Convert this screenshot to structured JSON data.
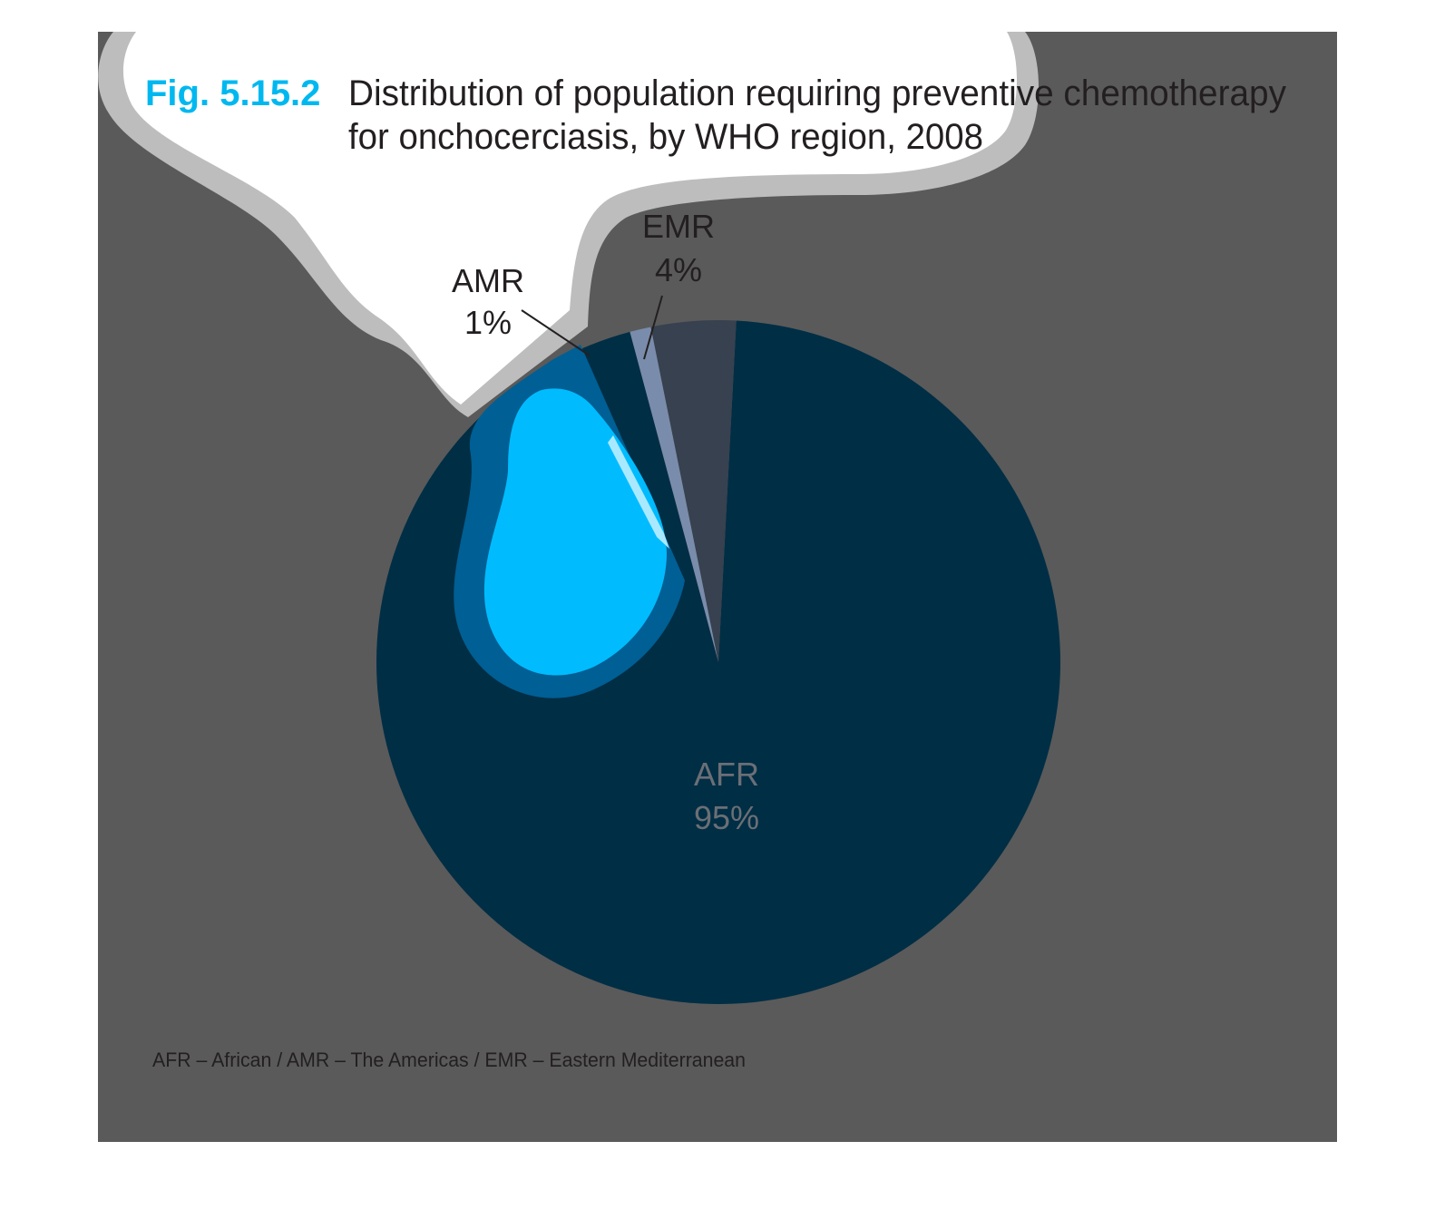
{
  "figure": {
    "number": "Fig. 5.15.2",
    "title_line1": "Distribution of population requiring preventive chemotherapy",
    "title_line2": "for onchocerciasis, by WHO region, 2008",
    "footnote": "AFR – African / AMR – The Americas / EMR – Eastern Mediterranean"
  },
  "colors": {
    "panel_background": "#5a5a5a",
    "bubble_fill": "#ffffff",
    "bubble_outline": "#bdbdbd",
    "figure_number": "#00b8f0",
    "afr_slice": "#002e45",
    "emr_slice": "#37414f",
    "amr_slice": "#7a8cab",
    "drop_outer": "#005f94",
    "drop_inner": "#00bcff",
    "title_text": "#231f20",
    "afr_label_text": "#6b6f75"
  },
  "chart_data": {
    "type": "pie",
    "title": "Distribution of population requiring preventive chemotherapy for onchocerciasis, by WHO region, 2008",
    "slices": [
      {
        "label": "AFR",
        "value": 95,
        "display": "95%"
      },
      {
        "label": "AMR",
        "value": 1,
        "display": "1%"
      },
      {
        "label": "EMR",
        "value": 4,
        "display": "4%"
      }
    ]
  }
}
